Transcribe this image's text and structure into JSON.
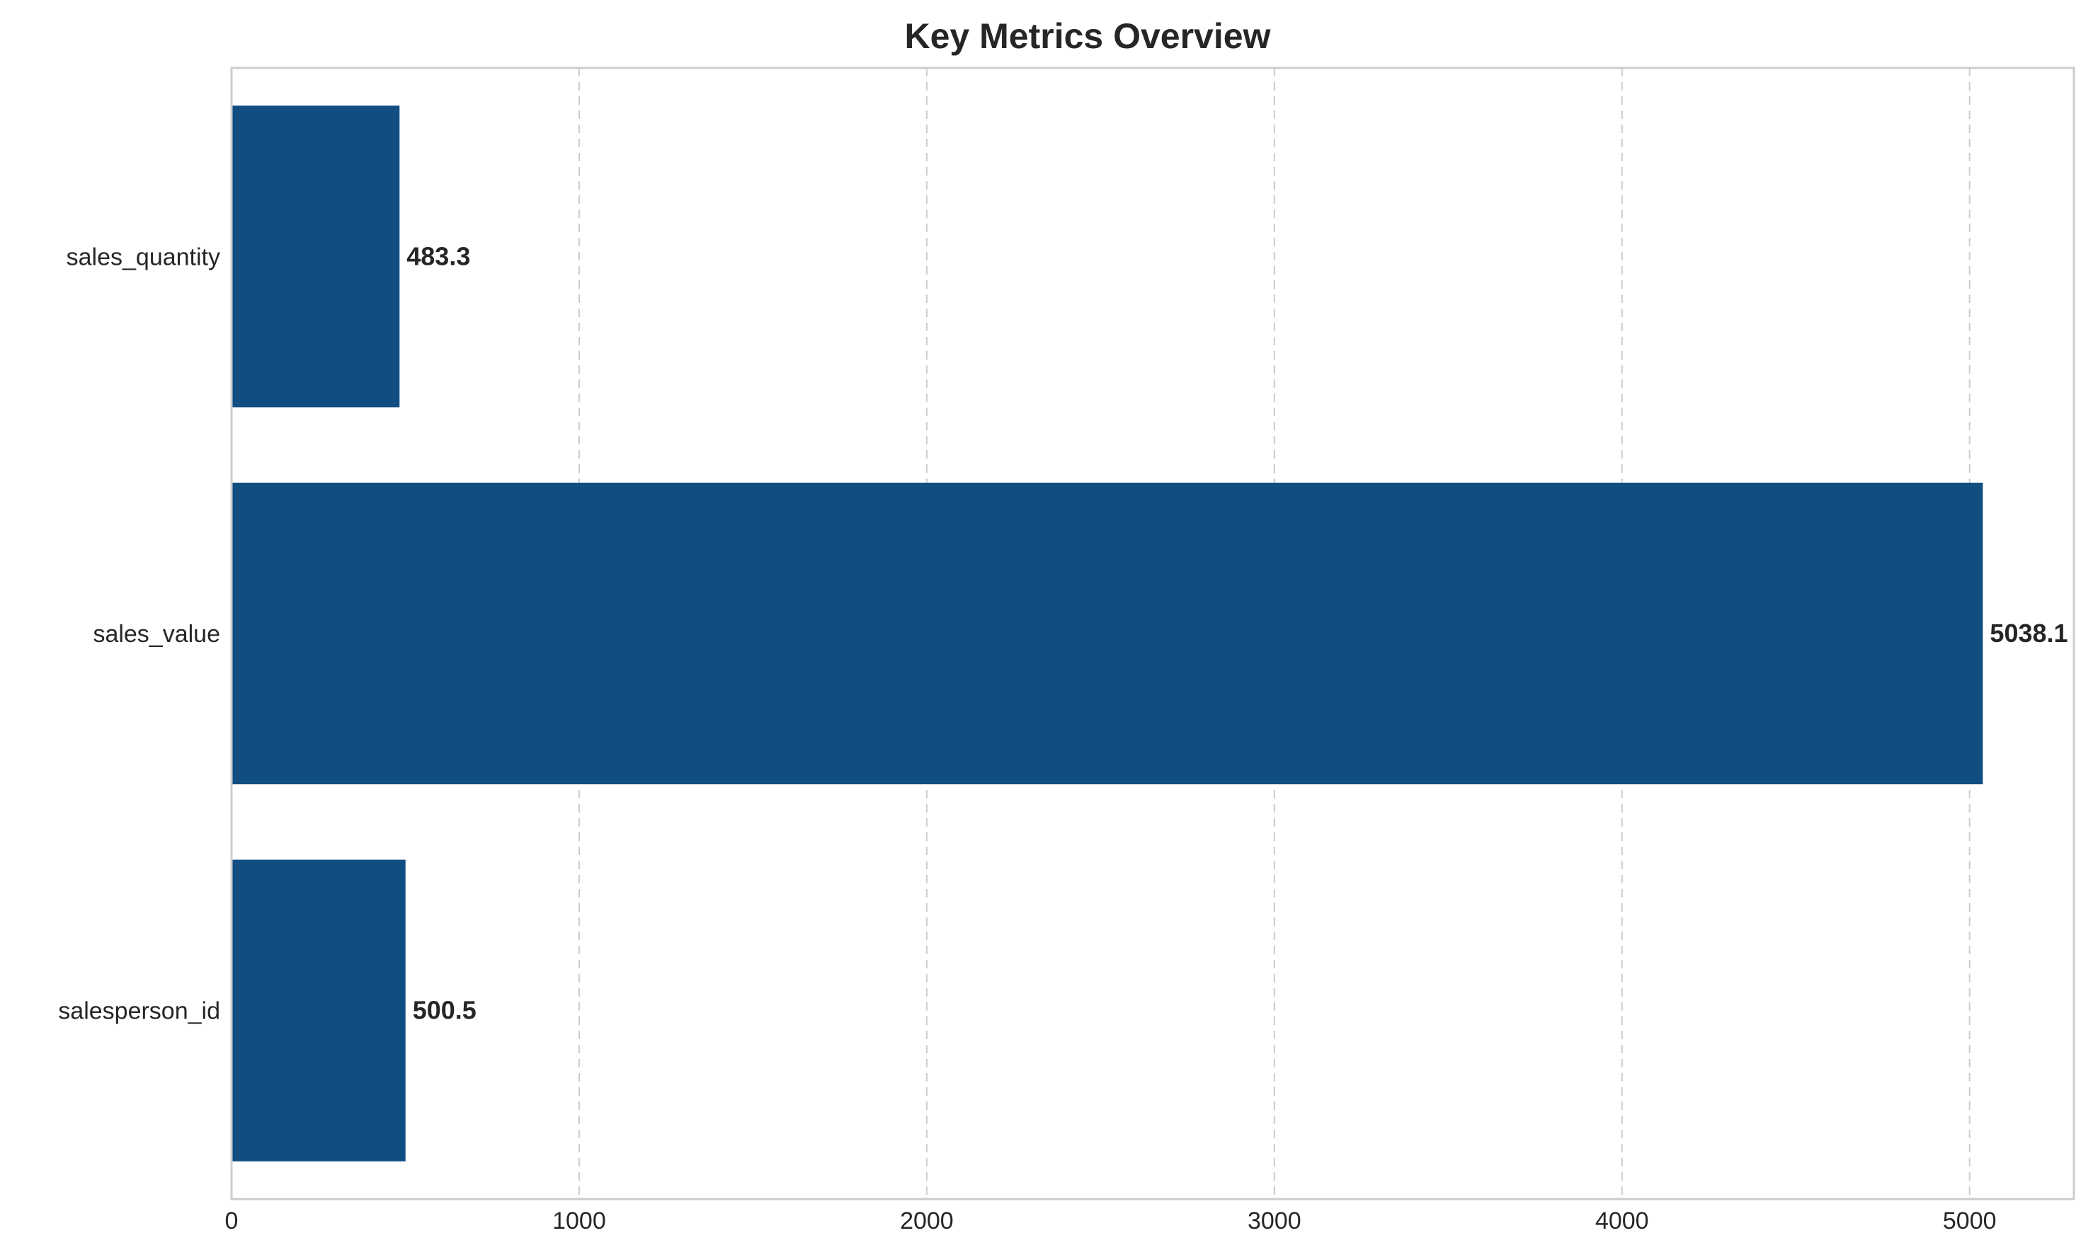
{
  "chart_data": {
    "type": "bar",
    "orientation": "horizontal",
    "title": "Key Metrics Overview",
    "xlabel": "",
    "ylabel": "",
    "categories": [
      "sales_quantity",
      "sales_value",
      "salesperson_id"
    ],
    "values": [
      483.3,
      5038.1,
      500.5
    ],
    "value_labels": [
      "483.3",
      "5038.1",
      "500.5"
    ],
    "xlim": [
      0,
      5300
    ],
    "xticks": [
      0,
      1000,
      2000,
      3000,
      4000,
      5000
    ],
    "xtick_labels": [
      "0",
      "1000",
      "2000",
      "3000",
      "4000",
      "5000"
    ],
    "grid": "x-axis dashed",
    "legend": "none",
    "bar_color": "#104e82"
  }
}
